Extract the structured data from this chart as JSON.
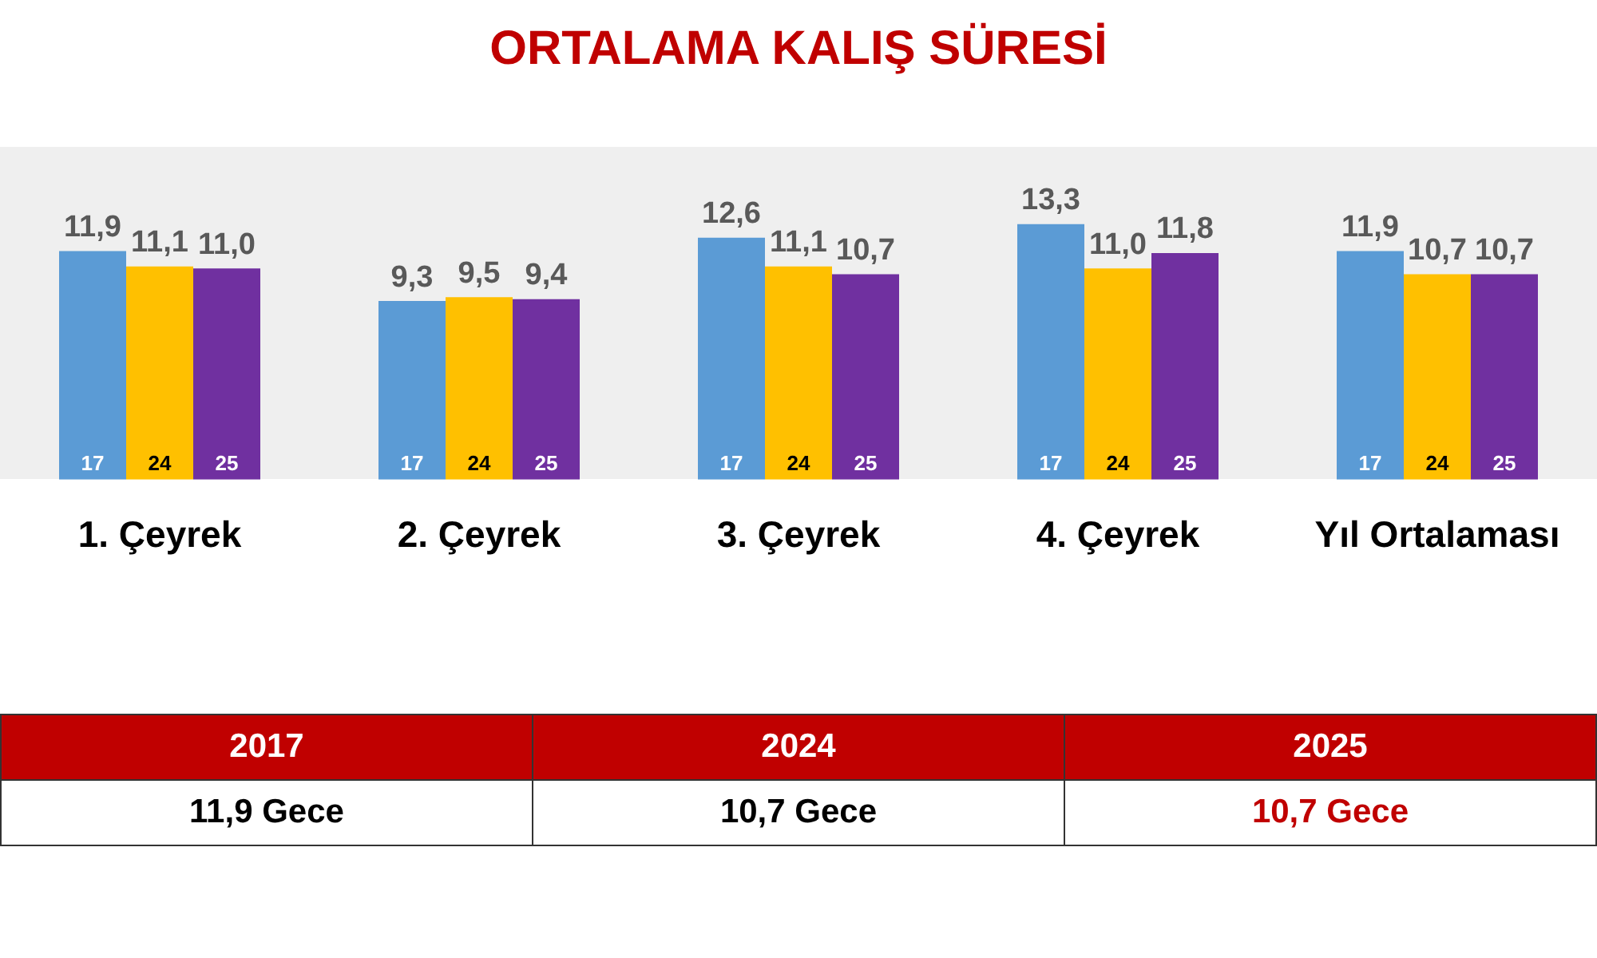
{
  "chart_data": {
    "type": "bar",
    "title": "ORTALAMA KALIŞ SÜRESİ",
    "categories": [
      "1. Çeyrek",
      "2. Çeyrek",
      "3. Çeyrek",
      "4. Çeyrek",
      "Yıl Ortalaması"
    ],
    "series": [
      {
        "name": "17",
        "color": "#5b9bd5",
        "values": [
          11.9,
          9.3,
          12.6,
          13.3,
          11.9
        ],
        "value_labels": [
          "11,9",
          "9,3",
          "12,6",
          "13,3",
          "11,9"
        ]
      },
      {
        "name": "24",
        "color": "#ffc000",
        "values": [
          11.1,
          9.5,
          11.1,
          11.0,
          10.7
        ],
        "value_labels": [
          "11,1",
          "9,5",
          "11,1",
          "11,0",
          "10,7"
        ]
      },
      {
        "name": "25",
        "color": "#7030a0",
        "values": [
          11.0,
          9.4,
          10.7,
          11.8,
          10.7
        ],
        "value_labels": [
          "11,0",
          "9,4",
          "10,7",
          "11,8",
          "10,7"
        ]
      }
    ],
    "tick_labels": "x",
    "grid": false,
    "legend": false,
    "annotations": [
      "2017",
      "2024",
      "2025",
      "11,9 Gece",
      "10,7 Gece",
      "10,7 Gece"
    ]
  }
}
